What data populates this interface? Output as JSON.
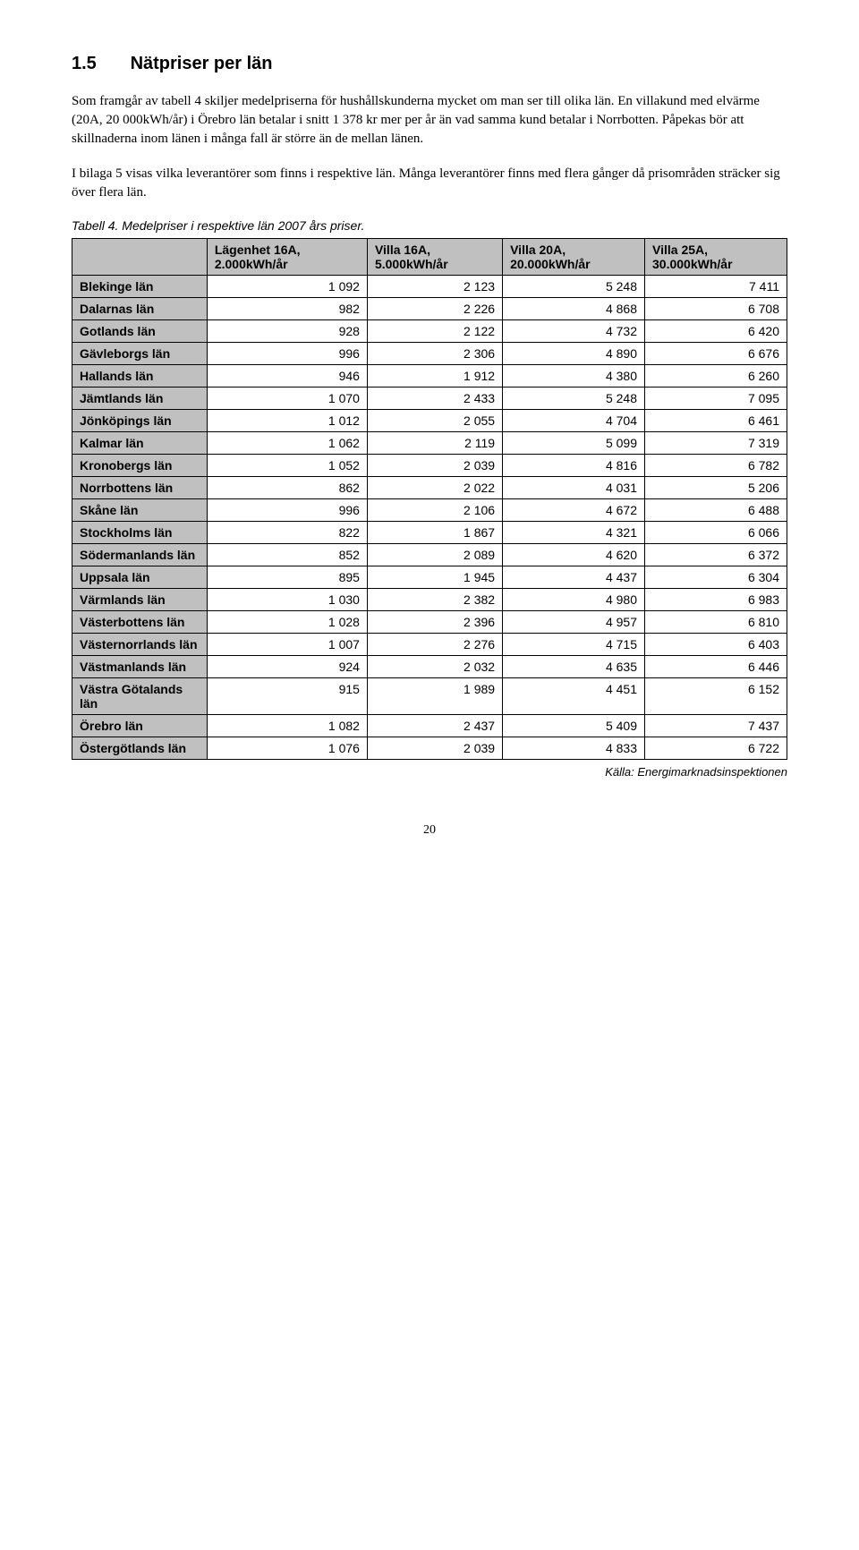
{
  "heading": {
    "number": "1.5",
    "title": "Nätpriser per län"
  },
  "paragraphs": {
    "p1": "Som framgår av tabell 4 skiljer medelpriserna för hushållskunderna mycket om man ser till olika län. En villakund med elvärme (20A, 20 000kWh/år) i Örebro län betalar i snitt 1 378 kr mer per år än vad samma kund betalar i Norrbotten. Påpekas bör att skillnaderna inom länen i många fall är större än de mellan länen.",
    "p2": "I bilaga 5 visas vilka leverantörer som finns i respektive län. Många leverantörer finns med flera gånger då prisområden sträcker sig över flera län."
  },
  "table": {
    "caption": "Tabell 4. Medelpriser i respektive län 2007 års priser.",
    "columns": [
      "Lägenhet 16A, 2.000kWh/år",
      "Villa 16A, 5.000kWh/år",
      "Villa 20A, 20.000kWh/år",
      "Villa 25A, 30.000kWh/år"
    ],
    "rows": [
      {
        "label": "Blekinge län",
        "values": [
          "1 092",
          "2 123",
          "5 248",
          "7 411"
        ]
      },
      {
        "label": "Dalarnas län",
        "values": [
          "982",
          "2 226",
          "4 868",
          "6 708"
        ]
      },
      {
        "label": "Gotlands län",
        "values": [
          "928",
          "2 122",
          "4 732",
          "6 420"
        ]
      },
      {
        "label": "Gävleborgs län",
        "values": [
          "996",
          "2 306",
          "4 890",
          "6 676"
        ]
      },
      {
        "label": "Hallands län",
        "values": [
          "946",
          "1 912",
          "4 380",
          "6 260"
        ]
      },
      {
        "label": "Jämtlands län",
        "values": [
          "1 070",
          "2 433",
          "5 248",
          "7 095"
        ]
      },
      {
        "label": "Jönköpings län",
        "values": [
          "1 012",
          "2 055",
          "4 704",
          "6 461"
        ]
      },
      {
        "label": "Kalmar län",
        "values": [
          "1 062",
          "2 119",
          "5 099",
          "7 319"
        ]
      },
      {
        "label": "Kronobergs län",
        "values": [
          "1 052",
          "2 039",
          "4 816",
          "6 782"
        ]
      },
      {
        "label": "Norrbottens län",
        "values": [
          "862",
          "2 022",
          "4 031",
          "5 206"
        ]
      },
      {
        "label": "Skåne län",
        "values": [
          "996",
          "2 106",
          "4 672",
          "6 488"
        ]
      },
      {
        "label": "Stockholms län",
        "values": [
          "822",
          "1 867",
          "4 321",
          "6 066"
        ]
      },
      {
        "label": "Södermanlands län",
        "values": [
          "852",
          "2 089",
          "4 620",
          "6 372"
        ]
      },
      {
        "label": "Uppsala län",
        "values": [
          "895",
          "1 945",
          "4 437",
          "6 304"
        ]
      },
      {
        "label": "Värmlands län",
        "values": [
          "1 030",
          "2 382",
          "4 980",
          "6 983"
        ]
      },
      {
        "label": "Västerbottens län",
        "values": [
          "1 028",
          "2 396",
          "4 957",
          "6 810"
        ]
      },
      {
        "label": "Västernorrlands län",
        "values": [
          "1 007",
          "2 276",
          "4 715",
          "6 403"
        ]
      },
      {
        "label": "Västmanlands län",
        "values": [
          "924",
          "2 032",
          "4 635",
          "6 446"
        ]
      },
      {
        "label": "Västra Götalands län",
        "values": [
          "915",
          "1 989",
          "4 451",
          "6 152"
        ]
      },
      {
        "label": "Örebro län",
        "values": [
          "1 082",
          "2 437",
          "5 409",
          "7 437"
        ]
      },
      {
        "label": "Östergötlands län",
        "values": [
          "1 076",
          "2 039",
          "4 833",
          "6 722"
        ]
      }
    ],
    "source": "Källa: Energimarknadsinspektionen"
  },
  "page_number": "20",
  "style": {
    "header_bg": "#c0c0c0",
    "border_color": "#000000",
    "body_bg": "#ffffff"
  }
}
